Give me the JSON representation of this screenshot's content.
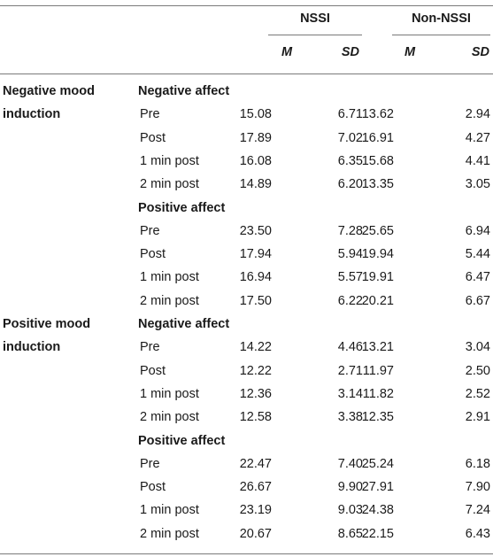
{
  "header": {
    "groups": [
      "NSSI",
      "Non-NSSI"
    ],
    "stats": [
      "M",
      "SD",
      "M",
      "SD"
    ]
  },
  "sections": [
    {
      "condition": [
        "Negative mood",
        "induction"
      ],
      "blocks": [
        {
          "measure": "Negative affect",
          "rows": [
            {
              "time": "Pre",
              "values": [
                "15.08",
                "6.71",
                "13.62",
                "2.94"
              ]
            },
            {
              "time": "Post",
              "values": [
                "17.89",
                "7.02",
                "16.91",
                "4.27"
              ]
            },
            {
              "time": "1 min post",
              "values": [
                "16.08",
                "6.35",
                "15.68",
                "4.41"
              ]
            },
            {
              "time": "2 min post",
              "values": [
                "14.89",
                "6.20",
                "13.35",
                "3.05"
              ]
            }
          ]
        },
        {
          "measure": "Positive affect",
          "rows": [
            {
              "time": "Pre",
              "values": [
                "23.50",
                "7.28",
                "25.65",
                "6.94"
              ]
            },
            {
              "time": "Post",
              "values": [
                "17.94",
                "5.94",
                "19.94",
                "5.44"
              ]
            },
            {
              "time": "1 min post",
              "values": [
                "16.94",
                "5.57",
                "19.91",
                "6.47"
              ]
            },
            {
              "time": "2 min post",
              "values": [
                "17.50",
                "6.22",
                "20.21",
                "6.67"
              ]
            }
          ]
        }
      ]
    },
    {
      "condition": [
        "Positive mood",
        "induction"
      ],
      "blocks": [
        {
          "measure": "Negative affect",
          "rows": [
            {
              "time": "Pre",
              "values": [
                "14.22",
                "4.46",
                "13.21",
                "3.04"
              ]
            },
            {
              "time": "Post",
              "values": [
                "12.22",
                "2.71",
                "11.97",
                "2.50"
              ]
            },
            {
              "time": "1 min post",
              "values": [
                "12.36",
                "3.14",
                "11.82",
                "2.52"
              ]
            },
            {
              "time": "2 min post",
              "values": [
                "12.58",
                "3.38",
                "12.35",
                "2.91"
              ]
            }
          ]
        },
        {
          "measure": "Positive affect",
          "rows": [
            {
              "time": "Pre",
              "values": [
                "22.47",
                "7.40",
                "25.24",
                "6.18"
              ]
            },
            {
              "time": "Post",
              "values": [
                "26.67",
                "9.90",
                "27.91",
                "7.90"
              ]
            },
            {
              "time": "1 min post",
              "values": [
                "23.19",
                "9.03",
                "24.38",
                "7.24"
              ]
            },
            {
              "time": "2 min post",
              "values": [
                "20.67",
                "8.65",
                "22.15",
                "6.43"
              ]
            }
          ]
        }
      ]
    }
  ]
}
